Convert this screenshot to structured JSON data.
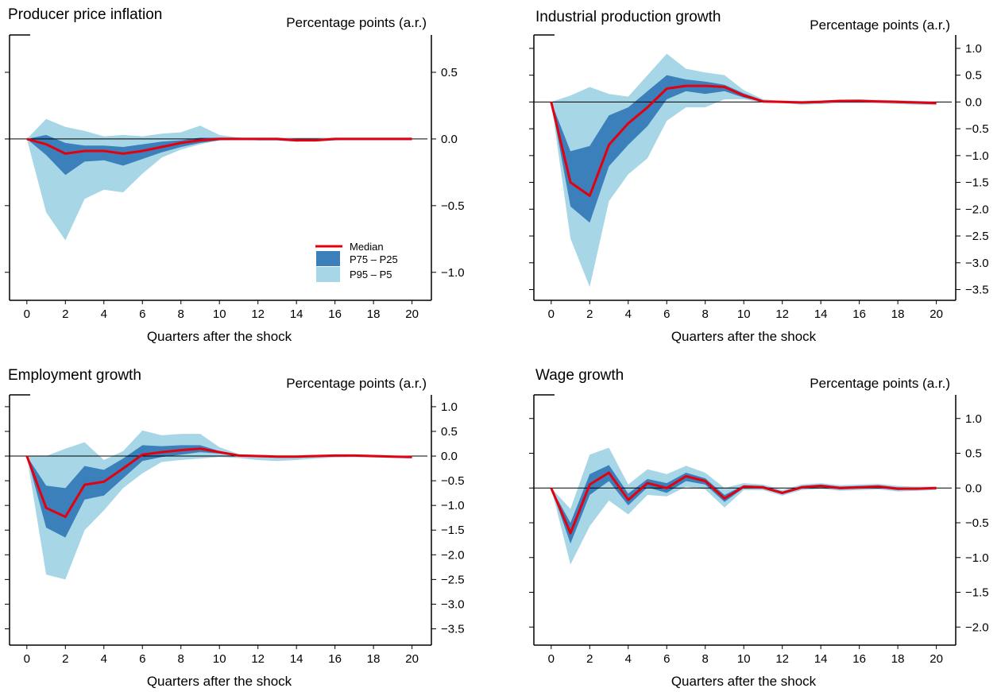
{
  "colors": {
    "median": "#e3000f",
    "inner_band": "#3b7fbb",
    "outer_band": "#a7d6e6",
    "axis": "#000000",
    "zero_line": "#000000"
  },
  "legend": {
    "median": "Median",
    "inner": "P75 – P25",
    "outer": "P95 – P5"
  },
  "chart_data": [
    {
      "type": "area",
      "title": "Producer price inflation",
      "ylabel": "Percentage points (a.r.)",
      "xlabel": "Quarters after the shock",
      "x": [
        0,
        1,
        2,
        3,
        4,
        5,
        6,
        7,
        8,
        9,
        10,
        11,
        12,
        13,
        14,
        15,
        16,
        17,
        18,
        19,
        20
      ],
      "xticks": [
        0,
        2,
        4,
        6,
        8,
        10,
        12,
        14,
        16,
        18,
        20
      ],
      "xtick_labels": [
        "0",
        "2",
        "4",
        "6",
        "8",
        "10",
        "12",
        "14",
        "16",
        "18",
        "20"
      ],
      "ylim": [
        -1.21,
        0.78
      ],
      "yticks": [
        -1.0,
        -0.5,
        0.0,
        0.5
      ],
      "ytick_labels": [
        "−1.0",
        "−0.5",
        "0.0",
        "0.5"
      ],
      "series": [
        {
          "name": "Median",
          "values": [
            0,
            -0.04,
            -0.11,
            -0.09,
            -0.09,
            -0.11,
            -0.09,
            -0.06,
            -0.03,
            -0.01,
            0,
            0,
            0,
            0,
            -0.01,
            -0.01,
            0,
            0,
            0,
            0,
            0
          ]
        },
        {
          "name": "P75 – P25",
          "upper": [
            0,
            0.03,
            -0.03,
            -0.05,
            -0.05,
            -0.06,
            -0.04,
            -0.02,
            -0.01,
            0.01,
            0.01,
            0.01,
            0,
            0,
            0,
            0,
            0,
            0,
            0,
            0,
            0
          ],
          "lower": [
            0,
            -0.12,
            -0.27,
            -0.17,
            -0.16,
            -0.2,
            -0.15,
            -0.1,
            -0.06,
            -0.03,
            -0.01,
            0,
            -0.01,
            -0.01,
            -0.02,
            -0.01,
            -0.01,
            0,
            0,
            0,
            0
          ]
        },
        {
          "name": "P95 – P5",
          "upper": [
            0,
            0.15,
            0.09,
            0.06,
            0.02,
            0.03,
            0.02,
            0.04,
            0.05,
            0.1,
            0.03,
            0.01,
            0.01,
            0.01,
            0.01,
            0.01,
            0.01,
            0.01,
            0.01,
            0.01,
            0.01
          ],
          "lower": [
            0,
            -0.55,
            -0.76,
            -0.45,
            -0.38,
            -0.4,
            -0.26,
            -0.14,
            -0.08,
            -0.04,
            -0.01,
            -0.01,
            -0.01,
            -0.01,
            -0.02,
            -0.02,
            -0.01,
            -0.01,
            -0.01,
            -0.01,
            -0.01
          ]
        }
      ],
      "legend_position": "bottom-right"
    },
    {
      "type": "area",
      "title": "Industrial production growth",
      "ylabel": "Percentage points (a.r.)",
      "xlabel": "Quarters after the shock",
      "x": [
        0,
        1,
        2,
        3,
        4,
        5,
        6,
        7,
        8,
        9,
        10,
        11,
        12,
        13,
        14,
        15,
        16,
        17,
        18,
        19,
        20
      ],
      "xticks": [
        0,
        2,
        4,
        6,
        8,
        10,
        12,
        14,
        16,
        18,
        20
      ],
      "xtick_labels": [
        "0",
        "2",
        "4",
        "6",
        "8",
        "10",
        "12",
        "14",
        "16",
        "18",
        "20"
      ],
      "ylim": [
        -3.7,
        1.25
      ],
      "yticks": [
        -3.5,
        -3.0,
        -2.5,
        -2.0,
        -1.5,
        -1.0,
        -0.5,
        0.0,
        0.5,
        1.0
      ],
      "ytick_labels": [
        "−3.5",
        "−3.0",
        "−2.5",
        "−2.0",
        "−1.5",
        "−1.0",
        "−0.5",
        "0.0",
        "0.5",
        "1.0"
      ],
      "series": [
        {
          "name": "Median",
          "values": [
            0,
            -1.5,
            -1.75,
            -0.8,
            -0.4,
            -0.1,
            0.25,
            0.3,
            0.3,
            0.28,
            0.12,
            0.01,
            0,
            -0.01,
            0,
            0.02,
            0.02,
            0.01,
            0,
            -0.01,
            -0.02
          ]
        },
        {
          "name": "P75 – P25",
          "upper": [
            0,
            -0.92,
            -0.82,
            -0.25,
            -0.1,
            0.2,
            0.5,
            0.42,
            0.38,
            0.32,
            0.16,
            0.03,
            0.01,
            0,
            0.01,
            0.03,
            0.03,
            0.02,
            0.01,
            0,
            0
          ],
          "lower": [
            0,
            -1.95,
            -2.25,
            -1.2,
            -0.8,
            -0.45,
            0.05,
            0.2,
            0.15,
            0.2,
            0.08,
            0,
            -0.01,
            -0.03,
            -0.02,
            0,
            0,
            0,
            -0.02,
            -0.03,
            -0.04
          ]
        },
        {
          "name": "P95 – P5",
          "upper": [
            0,
            0.12,
            0.28,
            0.15,
            0.1,
            0.5,
            0.9,
            0.62,
            0.55,
            0.5,
            0.22,
            0.05,
            0.02,
            0.02,
            0.03,
            0.04,
            0.05,
            0.04,
            0.03,
            0.02,
            0.01
          ],
          "lower": [
            0,
            -2.55,
            -3.45,
            -1.85,
            -1.35,
            -1.05,
            -0.35,
            -0.1,
            -0.1,
            0.05,
            0.05,
            -0.01,
            -0.02,
            -0.05,
            -0.04,
            -0.02,
            -0.02,
            -0.02,
            -0.04,
            -0.05,
            -0.06
          ]
        }
      ]
    },
    {
      "type": "area",
      "title": "Employment growth",
      "ylabel": "Percentage points (a.r.)",
      "xlabel": "Quarters after the shock",
      "x": [
        0,
        1,
        2,
        3,
        4,
        5,
        6,
        7,
        8,
        9,
        10,
        11,
        12,
        13,
        14,
        15,
        16,
        17,
        18,
        19,
        20
      ],
      "xticks": [
        0,
        2,
        4,
        6,
        8,
        10,
        12,
        14,
        16,
        18,
        20
      ],
      "xtick_labels": [
        "0",
        "2",
        "4",
        "6",
        "8",
        "10",
        "12",
        "14",
        "16",
        "18",
        "20"
      ],
      "ylim": [
        -3.83,
        1.24
      ],
      "yticks": [
        -3.5,
        -3.0,
        -2.5,
        -2.0,
        -1.5,
        -1.0,
        -0.5,
        0.0,
        0.5,
        1.0
      ],
      "ytick_labels": [
        "−3.5",
        "−3.0",
        "−2.5",
        "−2.0",
        "−1.5",
        "−1.0",
        "−0.5",
        "0.0",
        "0.5",
        "1.0"
      ],
      "series": [
        {
          "name": "Median",
          "values": [
            0,
            -1.05,
            -1.23,
            -0.58,
            -0.52,
            -0.25,
            0.03,
            0.08,
            0.12,
            0.15,
            0.08,
            0.01,
            0,
            -0.01,
            -0.01,
            0,
            0.01,
            0.01,
            0,
            -0.01,
            -0.02
          ]
        },
        {
          "name": "P75 – P25",
          "upper": [
            0,
            -0.6,
            -0.65,
            -0.2,
            -0.28,
            -0.05,
            0.22,
            0.2,
            0.22,
            0.22,
            0.1,
            0.02,
            0.01,
            0,
            0,
            0.01,
            0.02,
            0.02,
            0.01,
            0,
            -0.01
          ],
          "lower": [
            0,
            -1.45,
            -1.65,
            -0.88,
            -0.8,
            -0.45,
            -0.1,
            -0.02,
            0.03,
            0.08,
            0.05,
            0,
            -0.01,
            -0.02,
            -0.02,
            -0.01,
            0,
            0,
            -0.01,
            -0.02,
            -0.03
          ]
        },
        {
          "name": "P95 – P5",
          "upper": [
            0,
            0,
            0.15,
            0.28,
            -0.08,
            0.1,
            0.52,
            0.42,
            0.45,
            0.45,
            0.18,
            0.04,
            0.02,
            0.01,
            0.01,
            0.02,
            0.03,
            0.03,
            0.02,
            0.01,
            0
          ],
          "lower": [
            0,
            -2.4,
            -2.5,
            -1.5,
            -1.1,
            -0.65,
            -0.35,
            -0.12,
            -0.08,
            -0.05,
            -0.02,
            -0.04,
            -0.08,
            -0.1,
            -0.08,
            -0.05,
            -0.03,
            -0.02,
            -0.03,
            -0.04,
            -0.05
          ]
        }
      ]
    },
    {
      "type": "area",
      "title": "Wage growth",
      "ylabel": "Percentage points (a.r.)",
      "xlabel": "Quarters after the shock",
      "x": [
        0,
        1,
        2,
        3,
        4,
        5,
        6,
        7,
        8,
        9,
        10,
        11,
        12,
        13,
        14,
        15,
        16,
        17,
        18,
        19,
        20
      ],
      "xticks": [
        0,
        2,
        4,
        6,
        8,
        10,
        12,
        14,
        16,
        18,
        20
      ],
      "xtick_labels": [
        "0",
        "2",
        "4",
        "6",
        "8",
        "10",
        "12",
        "14",
        "16",
        "18",
        "20"
      ],
      "ylim": [
        -2.26,
        1.34
      ],
      "yticks": [
        -2.0,
        -1.5,
        -1.0,
        -0.5,
        0.0,
        0.5,
        1.0
      ],
      "ytick_labels": [
        "−2.0",
        "−1.5",
        "−1.0",
        "−0.5",
        "0.0",
        "0.5",
        "1.0"
      ],
      "series": [
        {
          "name": "Median",
          "values": [
            0,
            -0.65,
            0.05,
            0.22,
            -0.17,
            0.07,
            0,
            0.17,
            0.1,
            -0.15,
            0.02,
            0.01,
            -0.07,
            0.01,
            0.03,
            0,
            0.01,
            0.02,
            -0.01,
            -0.01,
            0
          ]
        },
        {
          "name": "P75 – P25",
          "upper": [
            0,
            -0.5,
            0.2,
            0.33,
            -0.08,
            0.13,
            0.07,
            0.22,
            0.14,
            -0.1,
            0.04,
            0.03,
            -0.05,
            0.03,
            0.05,
            0.02,
            0.03,
            0.04,
            0.01,
            0,
            0.01
          ],
          "lower": [
            0,
            -0.8,
            -0.1,
            0.1,
            -0.25,
            0.01,
            -0.07,
            0.1,
            0.05,
            -0.2,
            0,
            -0.01,
            -0.09,
            -0.01,
            0.01,
            -0.02,
            -0.01,
            0,
            -0.03,
            -0.02,
            -0.01
          ]
        },
        {
          "name": "P95 – P5",
          "upper": [
            0,
            -0.3,
            0.48,
            0.58,
            0.05,
            0.27,
            0.2,
            0.32,
            0.22,
            0,
            0.07,
            0.05,
            -0.03,
            0.05,
            0.07,
            0.04,
            0.05,
            0.06,
            0.03,
            0.02,
            0.02
          ],
          "lower": [
            0,
            -1.1,
            -0.55,
            -0.18,
            -0.38,
            -0.1,
            -0.12,
            0.02,
            -0.02,
            -0.28,
            -0.03,
            -0.03,
            -0.11,
            -0.03,
            -0.01,
            -0.04,
            -0.03,
            -0.02,
            -0.05,
            -0.04,
            -0.03
          ]
        }
      ]
    }
  ]
}
